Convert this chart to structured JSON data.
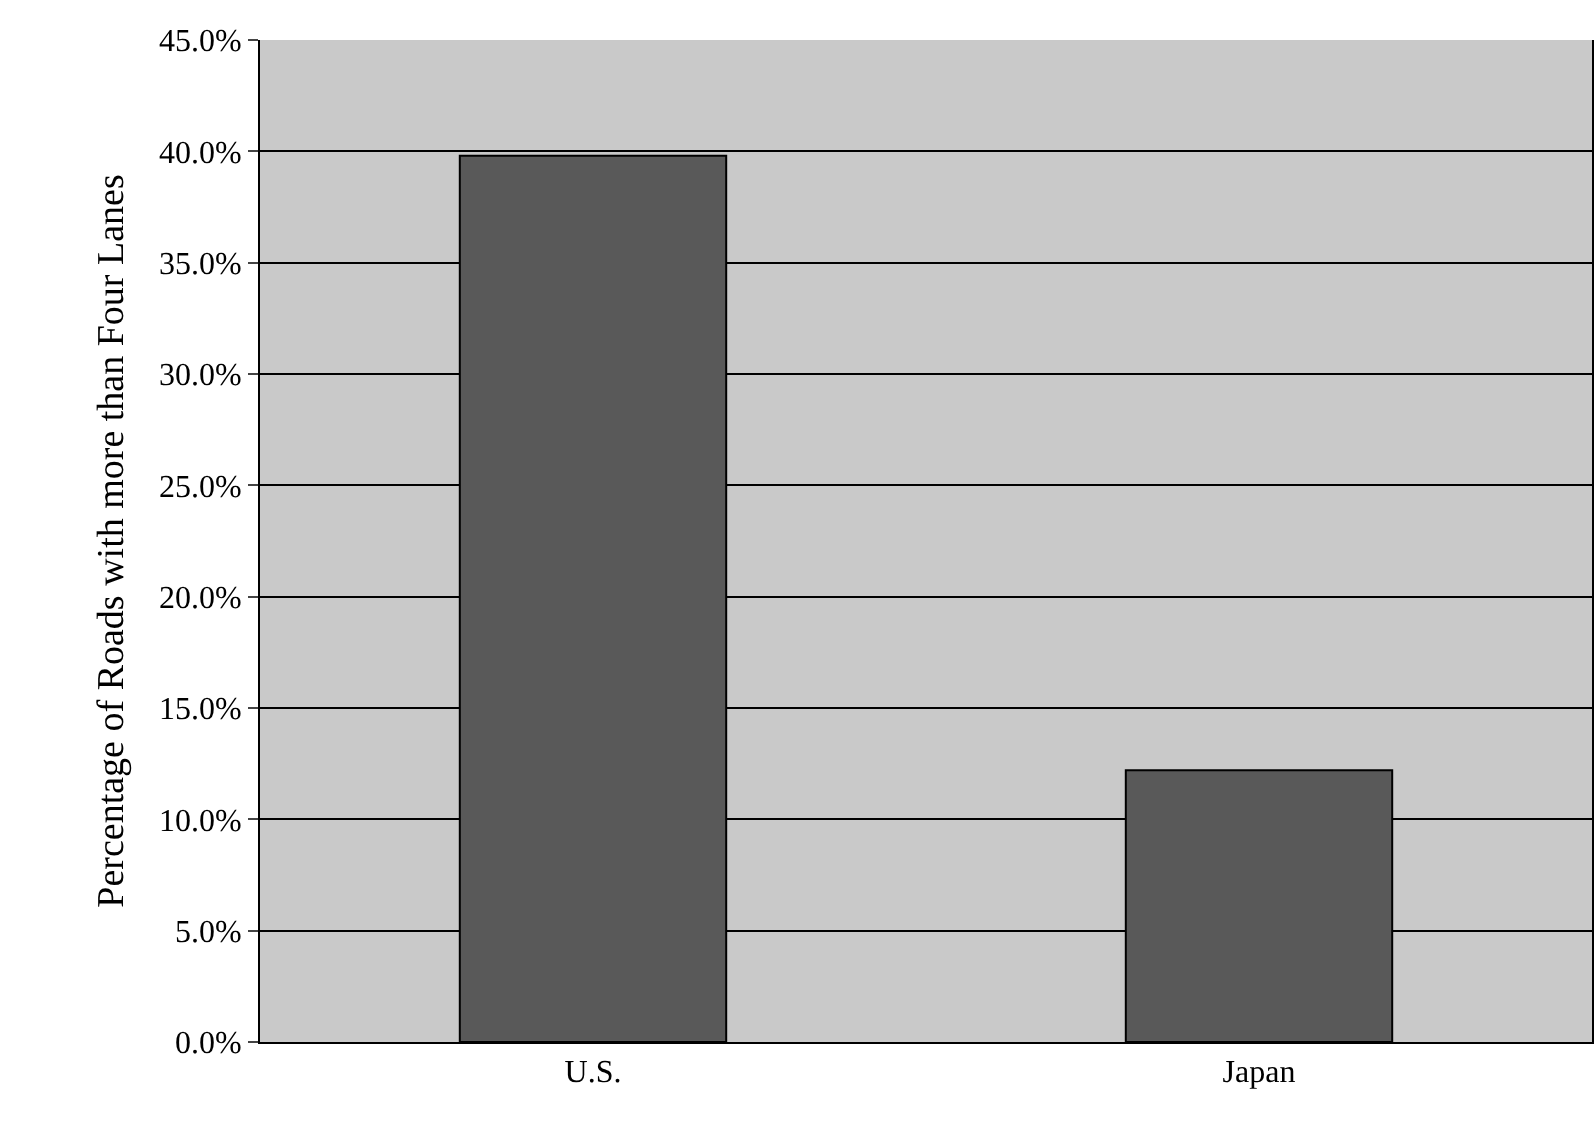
{
  "chart_data": {
    "type": "bar",
    "ylabel": "Percentage of Roads with more than Four Lanes",
    "categories": [
      "U.S.",
      "Japan"
    ],
    "values": [
      39.8,
      12.2
    ],
    "color": "#595959",
    "ylim": [
      0,
      45
    ],
    "yticks": [
      {
        "value": 0,
        "label": "0.0%"
      },
      {
        "value": 5,
        "label": "5.0%"
      },
      {
        "value": 10,
        "label": "10.0%"
      },
      {
        "value": 15,
        "label": "15.0%"
      },
      {
        "value": 20,
        "label": "20.0%"
      },
      {
        "value": 25,
        "label": "25.0%"
      },
      {
        "value": 30,
        "label": "30.0%"
      },
      {
        "value": 35,
        "label": "35.0%"
      },
      {
        "value": 40,
        "label": "40.0%"
      },
      {
        "value": 45,
        "label": "45.0%"
      }
    ],
    "grid": "y"
  }
}
